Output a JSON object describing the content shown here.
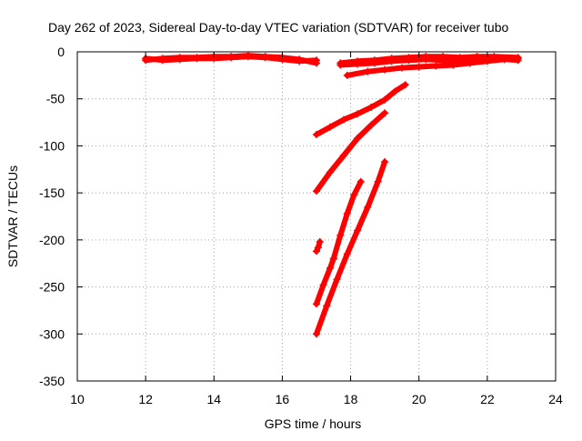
{
  "chart_data": {
    "type": "scatter",
    "title": "Day 262 of 2023, Sidereal Day-to-day VTEC variation (SDTVAR) for receiver tubo",
    "xlabel": "GPS time / hours",
    "ylabel": "SDTVAR / TECUs",
    "xlim": [
      10,
      24
    ],
    "ylim": [
      -350,
      0
    ],
    "xticks": [
      "10",
      "12",
      "14",
      "16",
      "18",
      "20",
      "22",
      "24"
    ],
    "yticks": [
      "0",
      "-50",
      "-100",
      "-150",
      "-200",
      "-250",
      "-300",
      "-350"
    ],
    "grid": true,
    "marker_color": "#ff0000",
    "segments": [
      {
        "x": [
          12.0,
          12.5,
          13.0,
          13.5,
          14.0,
          14.5,
          15.0,
          15.5,
          16.0,
          16.5,
          17.0
        ],
        "y": [
          -7,
          -9,
          -8,
          -7,
          -7,
          -6,
          -5,
          -6,
          -8,
          -10,
          -9
        ]
      },
      {
        "x": [
          12.0,
          12.5,
          13.0,
          13.5,
          14.0,
          14.5,
          15.0,
          15.5,
          16.0,
          16.5,
          17.0
        ],
        "y": [
          -9,
          -7,
          -6,
          -6,
          -5,
          -5,
          -4,
          -5,
          -6,
          -8,
          -12
        ]
      },
      {
        "x": [
          17.7,
          18.2,
          18.7,
          19.2,
          19.7,
          20.2,
          20.7,
          21.2,
          21.7,
          22.2,
          22.9
        ],
        "y": [
          -12,
          -10,
          -9,
          -7,
          -6,
          -5,
          -5,
          -6,
          -5,
          -5,
          -6
        ]
      },
      {
        "x": [
          17.7,
          18.2,
          18.7,
          19.2,
          19.7,
          20.2,
          20.7,
          21.2,
          21.7,
          22.2,
          22.9
        ],
        "y": [
          -14,
          -13,
          -12,
          -10,
          -9,
          -8,
          -9,
          -10,
          -8,
          -7,
          -9
        ]
      },
      {
        "x": [
          17.9,
          18.5,
          19.0,
          19.5,
          20.0,
          20.5,
          21.0,
          21.5,
          22.0,
          22.5,
          22.9
        ],
        "y": [
          -25,
          -21,
          -19,
          -17,
          -16,
          -15,
          -14,
          -12,
          -10,
          -8,
          -7
        ]
      },
      {
        "x": [
          17.0,
          17.4,
          17.8,
          18.2,
          18.6,
          19.0,
          19.3,
          19.6
        ],
        "y": [
          -88,
          -80,
          -72,
          -66,
          -59,
          -51,
          -42,
          -35
        ]
      },
      {
        "x": [
          17.0,
          17.4,
          17.8,
          18.2,
          18.6,
          19.0
        ],
        "y": [
          -148,
          -128,
          -110,
          -92,
          -78,
          -65
        ]
      },
      {
        "x": [
          17.5,
          17.7,
          17.9,
          18.1,
          18.3
        ],
        "y": [
          -220,
          -195,
          -172,
          -152,
          -138
        ]
      },
      {
        "x": [
          17.0,
          17.2,
          17.4,
          17.5
        ],
        "y": [
          -268,
          -248,
          -230,
          -220
        ]
      },
      {
        "x": [
          17.0,
          17.3,
          17.6,
          17.9,
          18.2,
          18.5,
          18.8,
          19.0
        ],
        "y": [
          -300,
          -270,
          -242,
          -215,
          -190,
          -165,
          -138,
          -117
        ]
      },
      {
        "x": [
          17.0,
          17.05,
          17.1
        ],
        "y": [
          -212,
          -208,
          -202
        ]
      }
    ]
  }
}
